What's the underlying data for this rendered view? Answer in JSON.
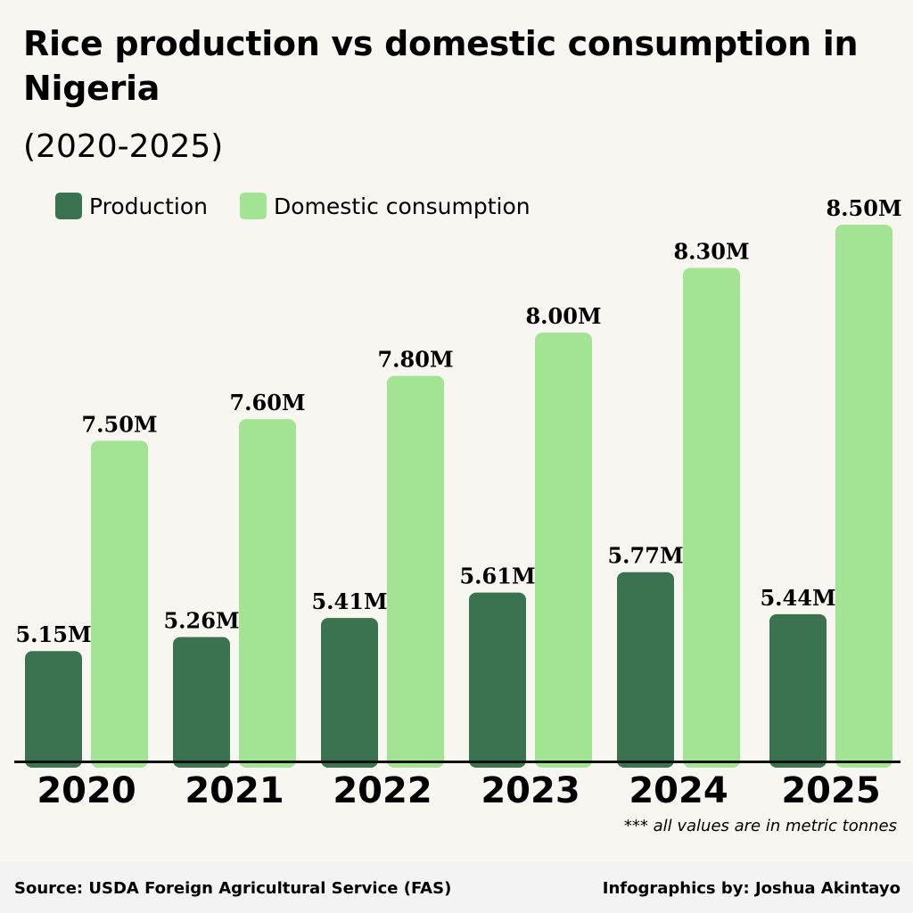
{
  "chart_data": {
    "type": "bar",
    "title": "Rice production vs domestic consumption in Nigeria",
    "subtitle": "(2020-2025)",
    "categories": [
      "2020",
      "2021",
      "2022",
      "2023",
      "2024",
      "2025"
    ],
    "series": [
      {
        "name": "Production",
        "color": "#3b7350",
        "values": [
          5.15,
          5.26,
          5.41,
          5.61,
          5.77,
          5.44
        ],
        "labels": [
          "5.15M",
          "5.26M",
          "5.41M",
          "5.61M",
          "5.77M",
          "5.44M"
        ],
        "axis_min": 4.29
      },
      {
        "name": "Domestic consumption",
        "color": "#a2e394",
        "values": [
          7.5,
          7.6,
          7.8,
          8.0,
          8.3,
          8.5
        ],
        "labels": [
          "7.50M",
          "7.60M",
          "7.80M",
          "8.00M",
          "8.30M",
          "8.50M"
        ],
        "axis_min": 6.02
      }
    ],
    "xlabel": "",
    "ylabel": "",
    "grid": false,
    "legend": "top-left",
    "note": "*** all values are in metric tonnes"
  },
  "footer": {
    "source": "Source: USDA Foreign Agricultural Service (FAS)",
    "credit": "Infographics by: Joshua Akintayo"
  }
}
